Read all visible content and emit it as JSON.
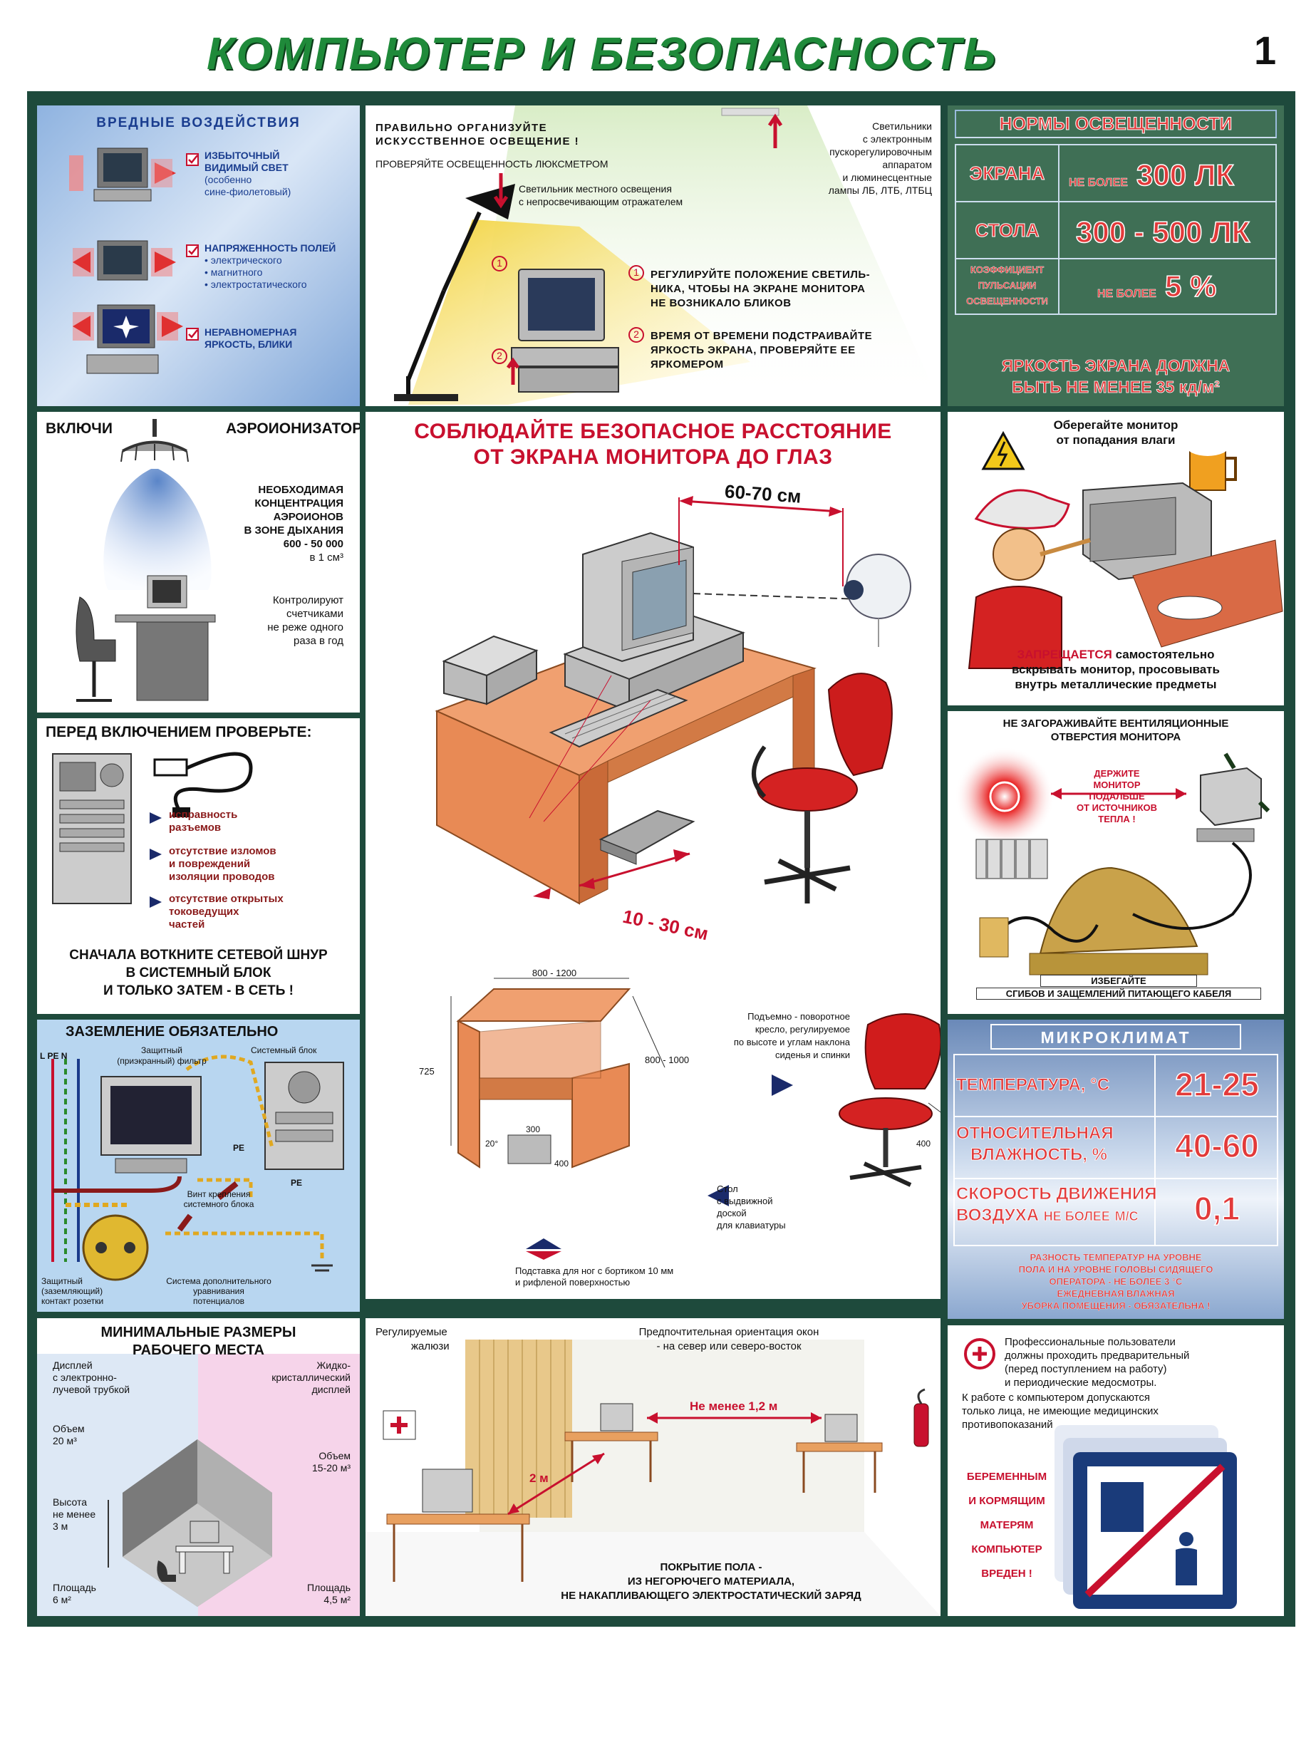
{
  "header": {
    "title": "КОМПЬЮТЕР  И  БЕЗОПАСНОСТЬ",
    "page_number": "1"
  },
  "harmful": {
    "title": "ВРЕДНЫЕ ВОЗДЕЙСТВИЯ",
    "items": [
      {
        "l1": "ИЗБЫТОЧНЫЙ",
        "l2": "ВИДИМЫЙ СВЕТ",
        "l3": "(особенно",
        "l4": "сине-фиолетовый)"
      },
      {
        "l1": "НАПРЯЖЕННОСТЬ ПОЛЕЙ",
        "l2": "электрического",
        "l3": "магнитного",
        "l4": "электростатического"
      },
      {
        "l1": "НЕРАВНОМЕРНАЯ",
        "l2": "ЯРКОСТЬ, БЛИКИ",
        "l3": "",
        "l4": ""
      }
    ]
  },
  "lighting": {
    "head1": "ПРАВИЛЬНО ОРГАНИЗУЙТЕ",
    "head2": "ИСКУССТВЕННОЕ ОСВЕЩЕНИЕ !",
    "check": "ПРОВЕРЯЙТЕ ОСВЕЩЕННОСТЬ ЛЮКСМЕТРОМ",
    "fix1": "Светильники",
    "fix2": "с электронным",
    "fix3": "пускорегулировочным",
    "fix4": "аппаратом",
    "fix5": "и люминесцентные",
    "fix6": "лампы ЛБ, ЛТБ, ЛТБЦ",
    "local1": "Светильник местного освещения",
    "local2": "с непросвечивающим отражателем",
    "tip1a": "РЕГУЛИРУЙТЕ ПОЛОЖЕНИЕ СВЕТИЛЬ-",
    "tip1b": "НИКА, ЧТОБЫ НА ЭКРАНЕ МОНИТОРА",
    "tip1c": "НЕ ВОЗНИКАЛО БЛИКОВ",
    "tip2a": "ВРЕМЯ ОТ ВРЕМЕНИ ПОДСТРАИВАЙТЕ",
    "tip2b": "ЯРКОСТЬ ЭКРАНА, ПРОВЕРЯЙТЕ ЕЕ",
    "tip2c": "ЯРКОМЕРОМ",
    "n1": "1",
    "n2": "2"
  },
  "norms": {
    "title": "НОРМЫ ОСВЕЩЕННОСТИ",
    "screen_label": "ЭКРАНА",
    "screen_prefix": "НЕ БОЛЕЕ",
    "screen_value": "300 ЛК",
    "table_label": "СТОЛА",
    "table_value": "300 - 500 ЛК",
    "k1": "КОЭФФИЦИЕНТ",
    "k2": "ПУЛЬСАЦИИ",
    "k3": "ОСВЕЩЕННОСТИ",
    "k_prefix": "НЕ БОЛЕЕ",
    "k_value": "5 %",
    "bright1": "ЯРКОСТЬ ЭКРАНА ДОЛЖНА",
    "bright2": "БЫТЬ НЕ МЕНЕЕ 35 кд/м²"
  },
  "ionizer": {
    "left": "ВКЛЮЧИ",
    "right": "АЭРОИОНИЗАТОР",
    "c1": "НЕОБХОДИМАЯ",
    "c2": "КОНЦЕНТРАЦИЯ",
    "c3": "АЭРОИОНОВ",
    "c4": "В ЗОНЕ ДЫХАНИЯ",
    "c5": "600 - 50 000",
    "c6": "в 1 см³",
    "m1": "Контролируют",
    "m2": "счетчиками",
    "m3": "не реже одного",
    "m4": "раза в год"
  },
  "distance": {
    "title1": "СОБЛЮДАЙТЕ БЕЗОПАСНОЕ РАССТОЯНИЕ",
    "title2": "ОТ ЭКРАНА МОНИТОРА ДО ГЛАЗ",
    "eye_distance": "60-70 см",
    "edge_distance": "10 - 30 см"
  },
  "moisture": {
    "h1": "Оберегайте монитор",
    "h2": "от попадания влаги",
    "w1_red": "ЗАПРЕЩАЕТСЯ",
    "w1_rest": "самостоятельно",
    "w2": "вскрывать монитор, просовывать",
    "w3": "внутрь металлические предметы"
  },
  "precheck": {
    "title": "ПЕРЕД ВКЛЮЧЕНИЕМ ПРОВЕРЬТЕ:",
    "i1a": "исправность",
    "i1b": "разъемов",
    "i2a": "отсутствие изломов",
    "i2b": "и повреждений",
    "i2c": "изоляции проводов",
    "i3a": "отсутствие открытых",
    "i3b": "токоведущих",
    "i3c": "частей",
    "f1": "СНАЧАЛА ВОТКНИТЕ СЕТЕВОЙ ШНУР",
    "f2": "В СИСТЕМНЫЙ БЛОК",
    "f3": "И ТОЛЬКО ЗАТЕМ - В СЕТЬ !"
  },
  "vent": {
    "t1": "НЕ ЗАГОРАЖИВАЙТЕ ВЕНТИЛЯЦИОННЫЕ",
    "t2": "ОТВЕРСТИЯ МОНИТОРА",
    "k1": "ДЕРЖИТЕ",
    "k2": "МОНИТОР",
    "k3": "ПОДАЛЬШЕ",
    "k4": "ОТ ИСТОЧНИКОВ",
    "k5": "ТЕПЛА !",
    "avoid": "ИЗБЕГАЙТЕ",
    "avoid2": "СГИБОВ И ЗАЩЕМЛЕНИЙ ПИТАЮЩЕГО КАБЕЛЯ"
  },
  "ground": {
    "title": "ЗАЗЕМЛЕНИЕ ОБЯЗАТЕЛЬНО",
    "lpen": "L PE N",
    "filt1": "Защитный",
    "filt2": "(приэкранный) фильтр",
    "sys": "Системный блок",
    "pe1": "PE",
    "pe2": "PE",
    "screw1": "Винт крепления",
    "screw2": "системного блока",
    "sock1": "Защитный",
    "sock2": "(заземляющий)",
    "sock3": "контакт розетки",
    "eq1": "Система дополнительного",
    "eq2": "уравнивания",
    "eq3": "потенциалов"
  },
  "furniture": {
    "w": "800 - 1200",
    "d": "800 - 1000",
    "h": "725",
    "ang": "20°",
    "fw": "300",
    "fd": "400",
    "chair1": "Подъемно - поворотное",
    "chair2": "кресло, регулируемое",
    "chair3": "по высоте и углам наклона",
    "chair4": "сиденья и спинки",
    "seat": "400",
    "tbl1": "Стол",
    "tbl2": "с выдвижной",
    "tbl3": "доской",
    "tbl4": "для клавиатуры",
    "foot1": "Подставка для ног с бортиком 10 мм",
    "foot2": "и рифленой поверхностью"
  },
  "climate": {
    "title": "МИКРОКЛИМАТ",
    "temp_label": "ТЕМПЕРАТУРА, °С",
    "temp_value": "21-25",
    "hum1": "ОТНОСИТЕЛЬНАЯ",
    "hum2": "ВЛАЖНОСТЬ, %",
    "hum_value": "40-60",
    "air1": "СКОРОСТЬ ДВИЖЕНИЯ",
    "air2a": "ВОЗДУХА",
    "air2b": "НЕ БОЛЕЕ",
    "air2c": "М/С",
    "air_value": "0,1",
    "n1": "РАЗНОСТЬ ТЕМПЕРАТУР НА УРОВНЕ",
    "n2": "ПОЛА И НА УРОВНЕ ГОЛОВЫ СИДЯЩЕГО",
    "n3": "ОПЕРАТОРА - НЕ БОЛЕЕ 3 °С",
    "n4": "ЕЖЕДНЕВНАЯ ВЛАЖНАЯ",
    "n5": "УБОРКА ПОМЕЩЕНИЯ - ОБЯЗАТЕЛЬНА !"
  },
  "minimal": {
    "t1": "МИНИМАЛЬНЫЕ РАЗМЕРЫ",
    "t2": "РАБОЧЕГО МЕСТА",
    "crt1": "Дисплей",
    "crt2": "с электронно-",
    "crt3": "лучевой трубкой",
    "lcd1": "Жидко-",
    "lcd2": "кристаллический",
    "lcd3": "дисплей",
    "v1a": "Объем",
    "v1b": "20 м³",
    "v2a": "Объем",
    "v2b": "15-20 м³",
    "ha": "Высота",
    "hb": "не менее",
    "hc": "3 м",
    "a1a": "Площадь",
    "a1b": "6 м²",
    "a2a": "Площадь",
    "a2b": "4,5 м²"
  },
  "room": {
    "blinds1": "Регулируемые",
    "blinds2": "жалюзи",
    "orient1": "Предпочтительная ориентация окон",
    "orient2": "- на север или северо-восток",
    "dist1": "Не менее 1,2 м",
    "dist2": "2 м",
    "floor1": "ПОКРЫТИЕ ПОЛА -",
    "floor2": "ИЗ НЕГОРЮЧЕГО МАТЕРИАЛА,",
    "floor3": "НЕ НАКАПЛИВАЮЩЕГО ЭЛЕКТРОСТАТИЧЕСКИЙ ЗАРЯД"
  },
  "medical": {
    "p1": "Профессиональные пользователи",
    "p2": "должны проходить предварительный",
    "p3": "(перед поступлением на работу)",
    "p4": "и периодические медосмотры.",
    "p5": "К работе с компьютером допускаются",
    "p6": "только лица, не имеющие медицинских",
    "p7": "противопоказаний",
    "w1": "БЕРЕМЕННЫМ",
    "w2": "И КОРМЯЩИМ",
    "w3": "МАТЕРЯМ",
    "w4": "КОМПЬЮТЕР",
    "w5": "ВРЕДЕН !"
  }
}
